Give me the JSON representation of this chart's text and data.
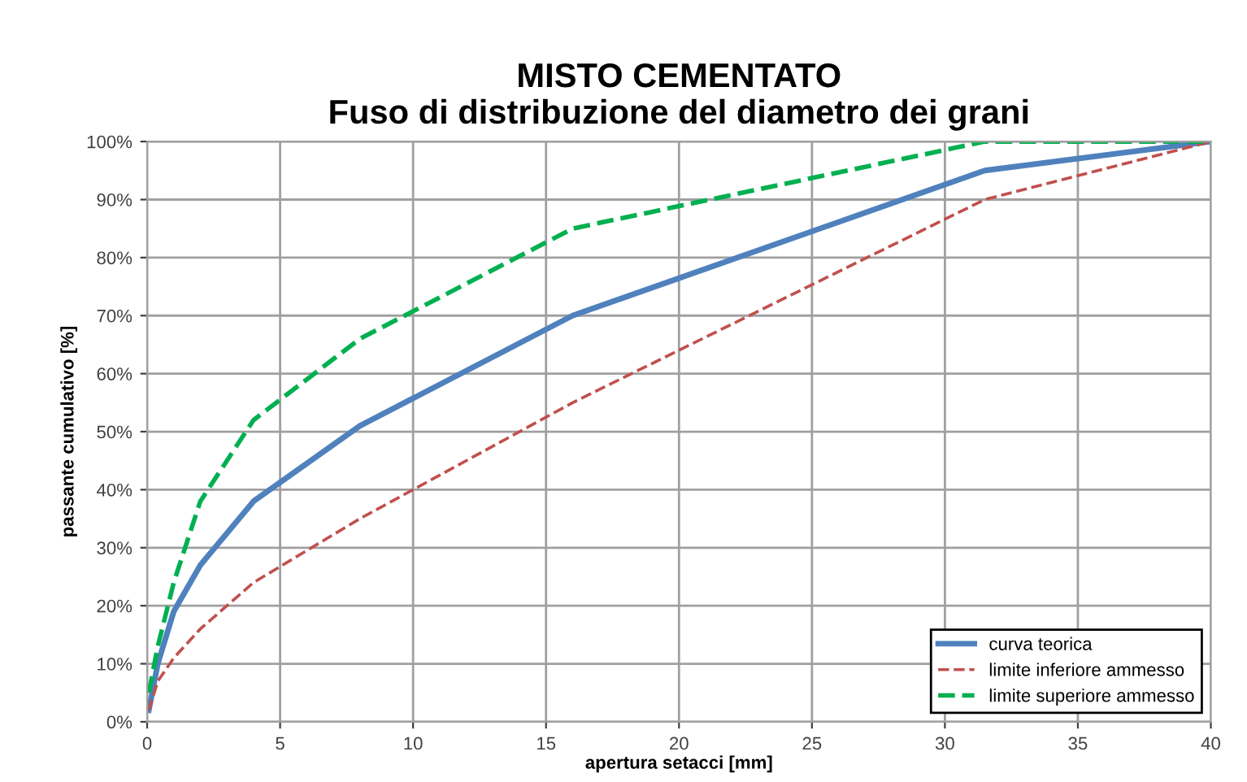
{
  "chart_data": {
    "type": "line",
    "title": "MISTO CEMENTATO\nFuso di distribuzione del diametro dei grani",
    "xlabel": "apertura setacci [mm]",
    "ylabel": "passante cumulativo [%]",
    "xlim": [
      0,
      40
    ],
    "xticks": [
      0,
      5,
      10,
      15,
      20,
      25,
      30,
      35,
      40
    ],
    "ylim": [
      0,
      100
    ],
    "yticks": [
      {
        "value": 0,
        "label": "0%"
      },
      {
        "value": 10,
        "label": "10%"
      },
      {
        "value": 20,
        "label": "20%"
      },
      {
        "value": 30,
        "label": "30%"
      },
      {
        "value": 40,
        "label": "40%"
      },
      {
        "value": 50,
        "label": "50%"
      },
      {
        "value": 60,
        "label": "60%"
      },
      {
        "value": 70,
        "label": "70%"
      },
      {
        "value": 80,
        "label": "80%"
      },
      {
        "value": 90,
        "label": "90%"
      },
      {
        "value": 100,
        "label": "100%"
      }
    ],
    "grid": true,
    "legend": "bottom right",
    "marker": "none",
    "series": [
      {
        "name": "curva teorica",
        "color": "#4f81bd",
        "line_style": "solid",
        "x": [
          0.063,
          0.4,
          1,
          2,
          4,
          8,
          16,
          31.5,
          40
        ],
        "values": [
          2,
          10,
          19,
          27,
          38,
          51,
          70,
          95,
          100
        ]
      },
      {
        "name": "limite inferiore ammesso",
        "color": "#c0504d",
        "line_style": "dashed",
        "x": [
          0.063,
          0.4,
          1,
          2,
          4,
          8,
          16,
          31.5,
          40
        ],
        "values": [
          2,
          7,
          11,
          16,
          24,
          35,
          55,
          90,
          100
        ]
      },
      {
        "name": "limite superiore ammesso",
        "color": "#00b050",
        "line_style": "dashed",
        "x": [
          0.063,
          0.4,
          1,
          2,
          4,
          8,
          16,
          31.5,
          40
        ],
        "values": [
          5,
          13,
          24,
          38,
          52,
          66,
          85,
          100,
          100
        ]
      }
    ]
  }
}
